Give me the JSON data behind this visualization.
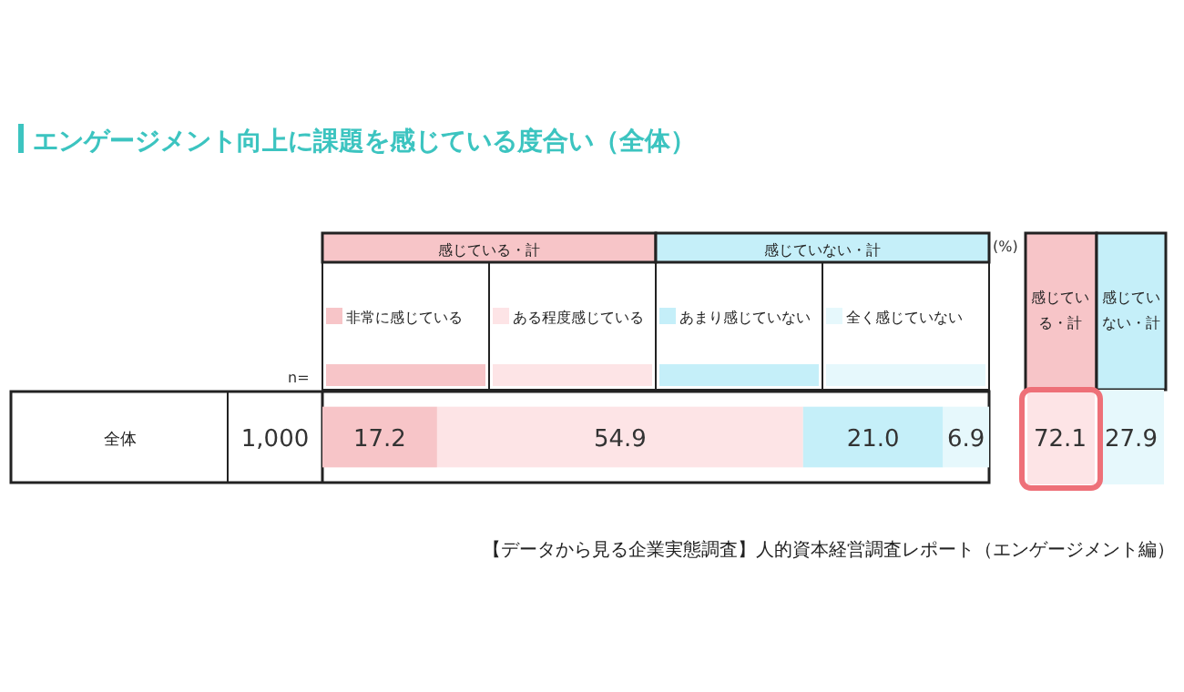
{
  "chart_data": {
    "type": "bar",
    "orientation": "horizontal",
    "stacked": true,
    "title": "エンゲージメント向上に課題を感じている度合い（全体）",
    "categories": [
      "全体"
    ],
    "xlim": [
      0,
      100
    ],
    "tick_labels": "y",
    "legend": "top",
    "series": [
      {
        "name": "非常に感じている",
        "color": "#f7c5c8",
        "values": [
          17.2
        ],
        "value_labels": [
          "17.2"
        ]
      },
      {
        "name": "ある程度感じている",
        "color": "#fde4e6",
        "values": [
          54.9
        ],
        "value_labels": [
          "54.9"
        ]
      },
      {
        "name": "あまり感じていない",
        "color": "#c5eff9",
        "values": [
          21.0
        ],
        "value_labels": [
          "21.0"
        ]
      },
      {
        "name": "全く感じていない",
        "color": "#e6f8fc",
        "values": [
          6.9
        ],
        "value_labels": [
          "6.9"
        ]
      }
    ],
    "annotations": [
      "感じている・計",
      "感じていない・計",
      "(%)",
      "n=",
      "1,000",
      "感じている・計",
      "感じていない・計",
      "72.1",
      "27.9",
      "【データから見る企業実態調査】人的資本経営調査レポート（エンゲージメント編）"
    ]
  }
}
